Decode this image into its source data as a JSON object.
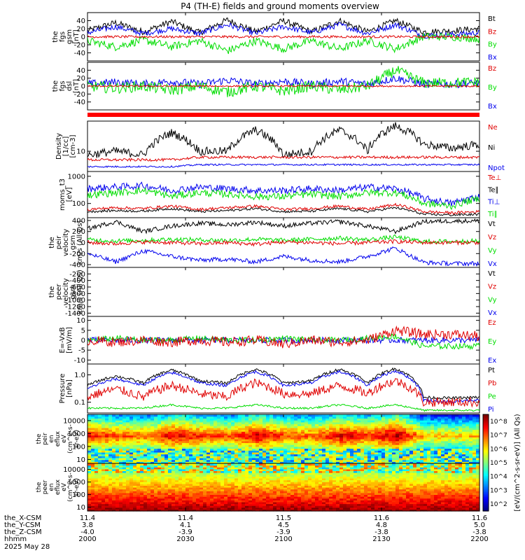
{
  "colors": {
    "black": "#000000",
    "red": "#e00000",
    "green": "#00dd00",
    "blue": "#0000ee"
  },
  "chart_data": {
    "type": "line",
    "title": "P4 (TH-E) fields and ground moments overview",
    "time": {
      "start": "2000",
      "end": "2200",
      "units": "hhmm"
    },
    "panels": [
      {
        "id": "fgs-gsm",
        "ylabel": [
          "the",
          "fgs",
          "gsm",
          "[nT]"
        ],
        "yrange": [
          -60,
          60
        ],
        "ticks": [
          "40",
          "20",
          "0",
          "-20",
          "-40"
        ],
        "tick_values": [
          40,
          20,
          0,
          -20,
          -40
        ],
        "legend": [
          {
            "label": "Bt",
            "color": "#000000"
          },
          {
            "label": "Bz",
            "color": "#e00000"
          },
          {
            "label": "By",
            "color": "#00dd00"
          },
          {
            "label": "Bx",
            "color": "#0000ee"
          }
        ],
        "series": [
          {
            "name": "Bt",
            "base": [
              15,
              35,
              12,
              38,
              10,
              42,
              12,
              40,
              12,
              40,
              12,
              40,
              12,
              15,
              20
            ],
            "noise": 8
          },
          {
            "name": "Bx",
            "base": [
              10,
              25,
              8,
              20,
              8,
              30,
              8,
              25,
              10,
              30,
              8,
              30,
              3,
              5,
              10
            ],
            "noise": 7
          },
          {
            "name": "By",
            "base": [
              -10,
              -25,
              -8,
              -25,
              -10,
              -35,
              -10,
              -30,
              -10,
              -30,
              -10,
              -30,
              0,
              0,
              -5
            ],
            "noise": 10
          },
          {
            "name": "Bz",
            "base": [
              0,
              0,
              0,
              0,
              0,
              0,
              0,
              0,
              0,
              0,
              0,
              0,
              0,
              0,
              0
            ],
            "noise": 3
          }
        ]
      },
      {
        "id": "fgs-dsl",
        "ylabel": [
          "the",
          "fgs",
          "dsl",
          "[nT]"
        ],
        "yrange": [
          -60,
          60
        ],
        "ticks": [
          "40",
          "20",
          "0",
          "-20",
          "-40"
        ],
        "tick_values": [
          40,
          20,
          0,
          -20,
          -40
        ],
        "legend": [
          {
            "label": "Bz",
            "color": "#e00000"
          },
          {
            "label": "By",
            "color": "#00dd00"
          },
          {
            "label": "Bx",
            "color": "#0000ee"
          }
        ],
        "series": [
          {
            "name": "Bx",
            "base": [
              5,
              10,
              5,
              12,
              5,
              15,
              5,
              12,
              5,
              12,
              5,
              20,
              5,
              5,
              8
            ],
            "noise": 10
          },
          {
            "name": "By",
            "base": [
              0,
              -5,
              0,
              -10,
              0,
              -15,
              0,
              -12,
              0,
              -10,
              0,
              40,
              8,
              8,
              10
            ],
            "noise": 14
          },
          {
            "name": "Bz",
            "base": [
              0,
              0,
              0,
              0,
              0,
              0,
              0,
              0,
              0,
              0,
              0,
              0,
              0,
              0,
              0
            ],
            "noise": 2
          }
        ]
      },
      {
        "id": "density",
        "ylabel": [
          "Density",
          "[1/cc]",
          "[cm-3]"
        ],
        "yrange": [
          3,
          60
        ],
        "log": true,
        "ticks": [
          "10"
        ],
        "tick_values": [
          10
        ],
        "legend": [
          {
            "label": "Ne",
            "color": "#e00000"
          },
          {
            "label": "Ni",
            "color": "#000000"
          },
          {
            "label": "Npot",
            "color": "#0000ee"
          }
        ],
        "series": [
          {
            "name": "Ni",
            "base": [
              8,
              10,
              8,
              30,
              10,
              10,
              35,
              8,
              10,
              35,
              10,
              45,
              15,
              12,
              15
            ],
            "noise": 0.25
          },
          {
            "name": "Ne",
            "base": [
              6,
              6,
              6,
              6,
              7,
              7,
              7,
              7,
              7,
              7,
              7,
              7,
              7,
              7,
              7
            ],
            "noise": 0.08
          },
          {
            "name": "Npot",
            "base": [
              4,
              4,
              4,
              4,
              4.5,
              4.5,
              4.5,
              4.5,
              4.5,
              4.5,
              4.5,
              4.5,
              4.5,
              4.5,
              4.5
            ],
            "noise": 0.05
          }
        ]
      },
      {
        "id": "moms",
        "ylabel": [
          "moms_t3",
          "[eV]"
        ],
        "yrange": [
          30,
          1500
        ],
        "log": true,
        "ticks": [
          "1000",
          "100"
        ],
        "tick_values": [
          1000,
          100
        ],
        "legend": [
          {
            "label": "Te⊥",
            "color": "#e00000"
          },
          {
            "label": "Te∥",
            "color": "#000000"
          },
          {
            "label": "Ti⊥",
            "color": "#0000ee"
          },
          {
            "label": "Ti∥",
            "color": "#00dd00"
          }
        ],
        "series": [
          {
            "name": "Ti⊥",
            "base": [
              350,
              400,
              450,
              300,
              400,
              350,
              300,
              300,
              350,
              300,
              400,
              350,
              150,
              100,
              180
            ],
            "noise": 0.3
          },
          {
            "name": "Ti∥",
            "base": [
              200,
              250,
              300,
              180,
              250,
              220,
              180,
              180,
              220,
              180,
              250,
              250,
              100,
              80,
              150
            ],
            "noise": 0.3
          },
          {
            "name": "Te⊥",
            "base": [
              60,
              70,
              65,
              80,
              60,
              70,
              80,
              60,
              65,
              80,
              60,
              90,
              50,
              45,
              50
            ],
            "noise": 0.12
          },
          {
            "name": "Te∥",
            "base": [
              50,
              55,
              52,
              65,
              50,
              55,
              65,
              50,
              52,
              65,
              50,
              70,
              40,
              38,
              40
            ],
            "noise": 0.1
          }
        ]
      },
      {
        "id": "peir-vel",
        "ylabel": [
          "the",
          "peir",
          "velocity",
          "gsm",
          "km/s (All Qs)"
        ],
        "yrange": [
          -450,
          450
        ],
        "ticks": [
          "400",
          "200",
          "0",
          "-200",
          "-400"
        ],
        "tick_values": [
          400,
          200,
          0,
          -200,
          -400
        ],
        "legend": [
          {
            "label": "Vt",
            "color": "#000000"
          },
          {
            "label": "Vz",
            "color": "#e00000"
          },
          {
            "label": "Vy",
            "color": "#00dd00"
          },
          {
            "label": "Vx",
            "color": "#0000ee"
          }
        ],
        "series": [
          {
            "name": "Vt",
            "base": [
              250,
              380,
              200,
              300,
              350,
              320,
              370,
              300,
              350,
              380,
              300,
              200,
              380,
              390,
              390
            ],
            "noise": 40
          },
          {
            "name": "Vx",
            "base": [
              -200,
              -350,
              -150,
              -250,
              -320,
              -300,
              -350,
              -250,
              -320,
              -350,
              -250,
              -100,
              -360,
              -380,
              -380
            ],
            "noise": 40
          },
          {
            "name": "Vy",
            "base": [
              50,
              30,
              40,
              60,
              50,
              40,
              60,
              40,
              60,
              80,
              50,
              100,
              20,
              20,
              30
            ],
            "noise": 40
          },
          {
            "name": "Vz",
            "base": [
              0,
              -20,
              10,
              0,
              -20,
              0,
              -30,
              10,
              0,
              -20,
              0,
              20,
              0,
              0,
              0
            ],
            "noise": 35
          }
        ]
      },
      {
        "id": "peer-vel",
        "ylabel": [
          "the",
          "peer",
          "velocity",
          "gsm",
          "km/s (All Qs)"
        ],
        "yrange": [
          -1500,
          0
        ],
        "ticks": [
          "-200",
          "-400",
          "-600",
          "-800",
          "-1000",
          "-1200",
          "-1400"
        ],
        "tick_values": [
          -200,
          -400,
          -600,
          -800,
          -1000,
          -1200,
          -1400
        ],
        "legend": [
          {
            "label": "Vt",
            "color": "#000000"
          },
          {
            "label": "Vz",
            "color": "#e00000"
          },
          {
            "label": "Vy",
            "color": "#00dd00"
          },
          {
            "label": "Vx",
            "color": "#0000ee"
          }
        ],
        "series": []
      },
      {
        "id": "exb",
        "ylabel": [
          "E=-VxB",
          "[mV/m]"
        ],
        "yrange": [
          -12,
          12
        ],
        "ticks": [
          "10",
          "5",
          "0",
          "-5",
          "-10"
        ],
        "tick_values": [
          10,
          5,
          0,
          -5,
          -10
        ],
        "legend": [
          {
            "label": "Ez",
            "color": "#e00000"
          },
          {
            "label": "Ey",
            "color": "#00dd00"
          },
          {
            "label": "Ex",
            "color": "#0000ee"
          }
        ],
        "series": [
          {
            "name": "Ex",
            "base": [
              0,
              0,
              0,
              0,
              0,
              0,
              0,
              0,
              0,
              0,
              0,
              0,
              0,
              0,
              0
            ],
            "noise": 1.5
          },
          {
            "name": "Ey",
            "base": [
              0,
              1,
              0,
              0,
              1,
              0,
              0,
              1,
              0,
              0,
              1,
              2,
              -3,
              -3,
              -3
            ],
            "noise": 1.5
          },
          {
            "name": "Ez",
            "base": [
              0,
              -1,
              0,
              -1,
              0,
              -1,
              0,
              -2,
              0,
              -1,
              0,
              5,
              3,
              3,
              2
            ],
            "noise": 2.5
          }
        ]
      },
      {
        "id": "pressure",
        "ylabel": [
          "Pressure",
          "[nPa]"
        ],
        "yrange": [
          0.04,
          2.5
        ],
        "log": true,
        "ticks": [
          "1.0",
          "0.1"
        ],
        "tick_values": [
          1.0,
          0.1
        ],
        "legend": [
          {
            "label": "Pt",
            "color": "#000000"
          },
          {
            "label": "Pb",
            "color": "#e00000"
          },
          {
            "label": "Pe",
            "color": "#00dd00"
          },
          {
            "label": "Pi",
            "color": "#0000ee"
          }
        ],
        "series": [
          {
            "name": "Pt",
            "base": [
              0.4,
              0.9,
              0.5,
              1.5,
              0.6,
              0.5,
              1.6,
              0.5,
              0.6,
              1.6,
              0.5,
              1.7,
              0.15,
              0.14,
              0.15
            ],
            "noise": 0.12
          },
          {
            "name": "Pi",
            "base": [
              0.3,
              0.7,
              0.4,
              1.2,
              0.5,
              0.4,
              1.3,
              0.4,
              0.5,
              1.3,
              0.4,
              1.4,
              0.12,
              0.1,
              0.12
            ],
            "noise": 0.12
          },
          {
            "name": "Pb",
            "base": [
              0.15,
              0.3,
              0.15,
              0.4,
              0.2,
              0.15,
              0.5,
              0.2,
              0.2,
              0.4,
              0.2,
              0.6,
              0.1,
              0.1,
              0.1
            ],
            "noise": 0.4
          },
          {
            "name": "Pe",
            "base": [
              0.06,
              0.06,
              0.06,
              0.08,
              0.06,
              0.06,
              0.08,
              0.06,
              0.06,
              0.08,
              0.06,
              0.08,
              0.05,
              0.05,
              0.05
            ],
            "noise": 0.08
          }
        ]
      }
    ],
    "spectrograms": [
      {
        "id": "peir-en-eflux",
        "ylabel": [
          "the",
          "peir",
          "en",
          "eflux",
          "eV",
          "(cm^2-s-",
          "sr-eV)"
        ],
        "yrange": [
          5,
          30000
        ],
        "ticks": [
          "10000",
          "1000",
          "100",
          "10"
        ],
        "tick_values": [
          10000,
          1000,
          100,
          10
        ]
      },
      {
        "id": "peer-en-eflux",
        "ylabel": [
          "the",
          "peer",
          "en",
          "eflux",
          "eV",
          "(cm^2-s-",
          "sr-eV)"
        ],
        "yrange": [
          5,
          30000
        ],
        "ticks": [
          "10000",
          "1000",
          "100",
          "10"
        ],
        "tick_values": [
          10000,
          1000,
          100,
          10
        ]
      }
    ],
    "colorbar": {
      "label": "[eV/(cm^2-s-sr-eV)] (All Qs)",
      "ticks": [
        "10^8",
        "10^7",
        "10^6",
        "10^5",
        "10^4",
        "10^3",
        "10^2"
      ]
    },
    "x_axis": {
      "tick_positions": [
        0,
        0.25,
        0.5,
        0.75,
        1.0
      ],
      "rows": [
        {
          "label": "the_X-CSM",
          "values": [
            "11.4",
            "11.4",
            "11.5",
            "11.6",
            "11.6"
          ]
        },
        {
          "label": "the_Y-CSM",
          "values": [
            "3.8",
            "4.1",
            "4.5",
            "4.8",
            "5.0"
          ]
        },
        {
          "label": "the_Z-CSM",
          "values": [
            "-4.0",
            "-3.9",
            "-3.9",
            "-3.8",
            "-3.8"
          ]
        },
        {
          "label": "hhmm",
          "values": [
            "2000",
            "2030",
            "2100",
            "2130",
            "2200"
          ]
        }
      ],
      "date": "2025 May 28"
    },
    "separator_bar": "#ff0000"
  }
}
